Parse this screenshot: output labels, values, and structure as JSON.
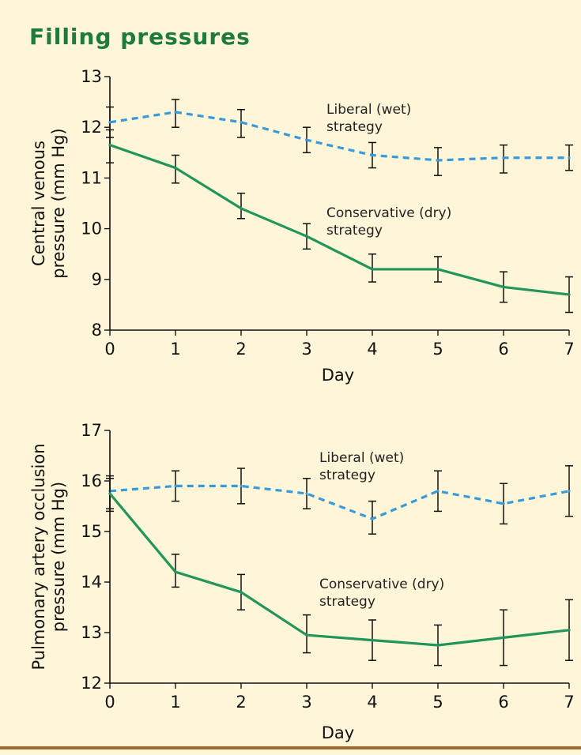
{
  "title": "Filling pressures",
  "colors": {
    "background": "#fff6d9",
    "title": "#1e7a3e",
    "liberal": "#3a9ad9",
    "conservative": "#22955a",
    "rule": "#a86a2a"
  },
  "chart_data": [
    {
      "type": "line",
      "xlabel": "Day",
      "ylabel": [
        "Central venous",
        "pressure (mm Hg)"
      ],
      "x": [
        0,
        1,
        2,
        3,
        4,
        5,
        6,
        7
      ],
      "xlim": [
        0,
        7
      ],
      "ylim": [
        8,
        13
      ],
      "yticks": [
        8,
        9,
        10,
        11,
        12,
        13
      ],
      "grid": false,
      "series": [
        {
          "name": "Liberal (wet) strategy",
          "label_lines": [
            "Liberal (wet)",
            "strategy"
          ],
          "style": "dashed",
          "values": [
            12.1,
            12.3,
            12.1,
            11.75,
            11.45,
            11.35,
            11.4,
            11.4
          ],
          "err_low": [
            11.8,
            12.0,
            11.8,
            11.5,
            11.2,
            11.05,
            11.1,
            11.15
          ],
          "err_high": [
            12.4,
            12.55,
            12.35,
            12.0,
            11.7,
            11.6,
            11.65,
            11.65
          ]
        },
        {
          "name": "Conservative (dry) strategy",
          "label_lines": [
            "Conservative (dry)",
            "strategy"
          ],
          "style": "solid",
          "values": [
            11.65,
            11.2,
            10.4,
            9.85,
            9.2,
            9.2,
            8.85,
            8.7
          ],
          "err_low": [
            11.3,
            10.9,
            10.2,
            9.6,
            8.95,
            8.95,
            8.55,
            8.35
          ],
          "err_high": [
            11.95,
            11.45,
            10.7,
            10.1,
            9.5,
            9.45,
            9.15,
            9.05
          ]
        }
      ]
    },
    {
      "type": "line",
      "xlabel": "Day",
      "ylabel": [
        "Pulmonary artery occlusion",
        "pressure (mm Hg)"
      ],
      "x": [
        0,
        1,
        2,
        3,
        4,
        5,
        6,
        7
      ],
      "xlim": [
        0,
        7
      ],
      "ylim": [
        12,
        17
      ],
      "yticks": [
        12,
        13,
        14,
        15,
        16,
        17
      ],
      "grid": false,
      "series": [
        {
          "name": "Liberal (wet) strategy",
          "label_lines": [
            "Liberal (wet)",
            "strategy"
          ],
          "style": "dashed",
          "values": [
            15.8,
            15.9,
            15.9,
            15.75,
            15.25,
            15.8,
            15.55,
            15.8
          ],
          "err_low": [
            15.45,
            15.6,
            15.55,
            15.45,
            14.95,
            15.4,
            15.15,
            15.3
          ],
          "err_high": [
            16.1,
            16.2,
            16.25,
            16.05,
            15.6,
            16.2,
            15.95,
            16.3
          ]
        },
        {
          "name": "Conservative (dry) strategy",
          "label_lines": [
            "Conservative (dry)",
            "strategy"
          ],
          "style": "solid",
          "values": [
            15.75,
            14.2,
            13.8,
            12.95,
            12.85,
            12.75,
            12.9,
            13.05
          ],
          "err_low": [
            15.4,
            13.9,
            13.45,
            12.6,
            12.45,
            12.35,
            12.35,
            12.45
          ],
          "err_high": [
            16.05,
            14.55,
            14.15,
            13.35,
            13.25,
            13.15,
            13.45,
            13.65
          ]
        }
      ]
    }
  ]
}
